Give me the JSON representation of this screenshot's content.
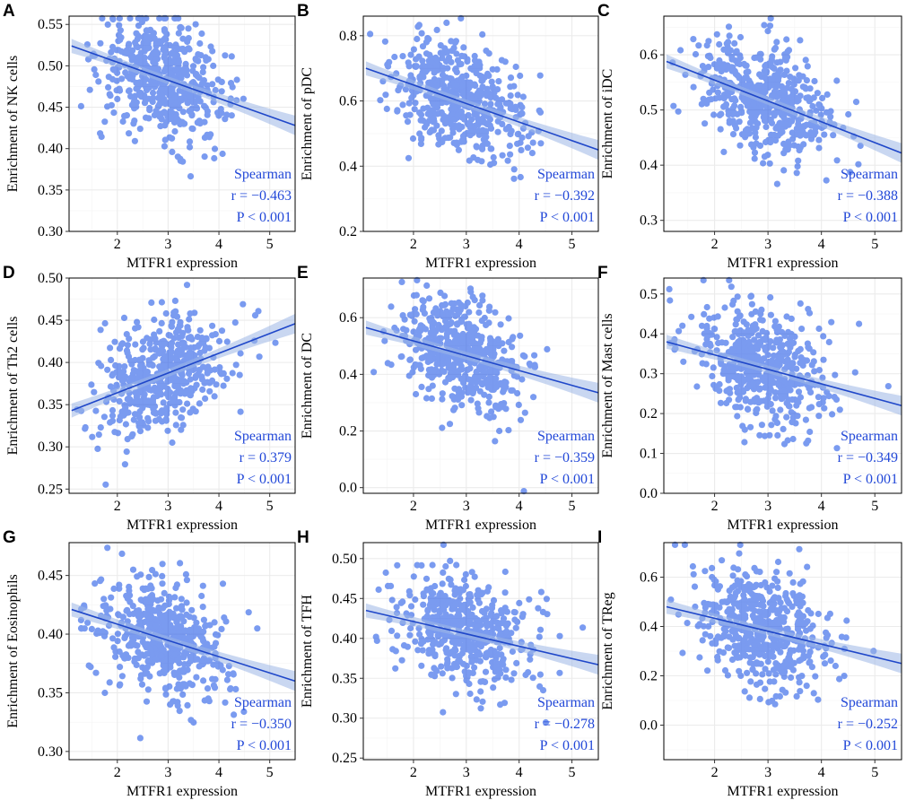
{
  "figure": {
    "style": {
      "point_color": "#2a5ee8",
      "line_color": "#1f47c9",
      "band_color": "#9db6e6",
      "grid_color": "#ebebeb",
      "annotation_color": "#2248d8"
    },
    "x_axis": {
      "label": "MTFR1 expression",
      "ticks": [
        2,
        3,
        4,
        5
      ],
      "range": [
        1.05,
        5.5
      ]
    }
  },
  "chart_data": [
    {
      "panel": "A",
      "type": "scatter",
      "ylabel": "Enrichment of NK cells",
      "xlabel": "MTFR1 expression",
      "ylim": [
        0.3,
        0.56
      ],
      "yticks": [
        0.3,
        0.35,
        0.4,
        0.45,
        0.5,
        0.55
      ],
      "fit": {
        "x": [
          1.1,
          5.5
        ],
        "y": [
          0.524,
          0.428
        ]
      },
      "stats": {
        "method": "Spearman",
        "r": "r = −0.463",
        "p": "P < 0.001"
      }
    },
    {
      "panel": "B",
      "type": "scatter",
      "ylabel": "Enrichment of pDC",
      "xlabel": "MTFR1 expression",
      "ylim": [
        0.2,
        0.86
      ],
      "yticks": [
        0.2,
        0.4,
        0.6,
        0.8
      ],
      "fit": {
        "x": [
          1.1,
          5.5
        ],
        "y": [
          0.7,
          0.45
        ]
      },
      "stats": {
        "method": "Spearman",
        "r": "r = −0.392",
        "p": "P < 0.001"
      }
    },
    {
      "panel": "C",
      "type": "scatter",
      "ylabel": "Enrichment of iDC",
      "xlabel": "MTFR1 expression",
      "ylim": [
        0.28,
        0.67
      ],
      "yticks": [
        0.3,
        0.4,
        0.5,
        0.6
      ],
      "fit": {
        "x": [
          1.1,
          5.5
        ],
        "y": [
          0.588,
          0.422
        ]
      },
      "stats": {
        "method": "Spearman",
        "r": "r = −0.388",
        "p": "P < 0.001"
      }
    },
    {
      "panel": "D",
      "type": "scatter",
      "ylabel": "Enrichment of Th2 cells",
      "xlabel": "MTFR1 expression",
      "ylim": [
        0.245,
        0.5
      ],
      "yticks": [
        0.25,
        0.3,
        0.35,
        0.4,
        0.45,
        0.5
      ],
      "fit": {
        "x": [
          1.1,
          5.5
        ],
        "y": [
          0.343,
          0.446
        ]
      },
      "stats": {
        "method": "Spearman",
        "r": "r = 0.379",
        "p": "P < 0.001"
      }
    },
    {
      "panel": "E",
      "type": "scatter",
      "ylabel": "Enrichment of DC",
      "xlabel": "MTFR1 expression",
      "ylim": [
        -0.02,
        0.74
      ],
      "yticks": [
        0.0,
        0.2,
        0.4,
        0.6
      ],
      "fit": {
        "x": [
          1.1,
          5.5
        ],
        "y": [
          0.565,
          0.335
        ]
      },
      "stats": {
        "method": "Spearman",
        "r": "r = −0.359",
        "p": "P < 0.001"
      }
    },
    {
      "panel": "F",
      "type": "scatter",
      "ylabel": "Enrichment of Mast cells",
      "xlabel": "MTFR1 expression",
      "ylim": [
        0.0,
        0.54
      ],
      "yticks": [
        0.0,
        0.1,
        0.2,
        0.3,
        0.4,
        0.5
      ],
      "fit": {
        "x": [
          1.1,
          5.5
        ],
        "y": [
          0.38,
          0.22
        ]
      },
      "stats": {
        "method": "Spearman",
        "r": "r = −0.349",
        "p": "P < 0.001"
      }
    },
    {
      "panel": "G",
      "type": "scatter",
      "ylabel": "Enrichment of Eosinophils",
      "xlabel": "MTFR1 expression",
      "ylim": [
        0.293,
        0.478
      ],
      "yticks": [
        0.3,
        0.35,
        0.4,
        0.45
      ],
      "fit": {
        "x": [
          1.1,
          5.5
        ],
        "y": [
          0.421,
          0.36
        ]
      },
      "stats": {
        "method": "Spearman",
        "r": "r = −0.350",
        "p": "P < 0.001"
      }
    },
    {
      "panel": "H",
      "type": "scatter",
      "ylabel": "Enrichment of TFH",
      "xlabel": "MTFR1 expression",
      "ylim": [
        0.248,
        0.52
      ],
      "yticks": [
        0.25,
        0.3,
        0.35,
        0.4,
        0.45,
        0.5
      ],
      "fit": {
        "x": [
          1.1,
          5.5
        ],
        "y": [
          0.435,
          0.367
        ]
      },
      "stats": {
        "method": "Spearman",
        "r": "r = −0.278",
        "p": "P < 0.001"
      }
    },
    {
      "panel": "I",
      "type": "scatter",
      "ylabel": "Enrichment of TReg",
      "xlabel": "MTFR1 expression",
      "ylim": [
        -0.14,
        0.74
      ],
      "yticks": [
        0.0,
        0.2,
        0.4,
        0.6
      ],
      "fit": {
        "x": [
          1.1,
          5.5
        ],
        "y": [
          0.48,
          0.25
        ]
      },
      "stats": {
        "method": "Spearman",
        "r": "r = −0.252",
        "p": "P < 0.001"
      }
    }
  ]
}
